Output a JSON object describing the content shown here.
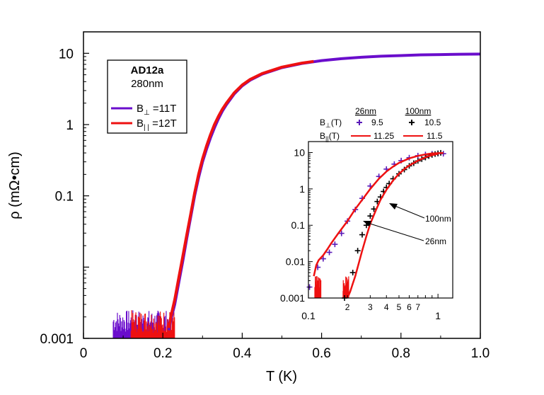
{
  "chart_data": [
    {
      "type": "line",
      "title": "",
      "xlabel": "T (K)",
      "ylabel": "ρ (mΩ•cm)",
      "x_scale": "linear",
      "y_scale": "log",
      "xlim": [
        0,
        1.0
      ],
      "ylim": [
        0.001,
        20
      ],
      "x_ticks": [
        0,
        0.2,
        0.4,
        0.6,
        0.8,
        1.0
      ],
      "x_tick_labels": [
        "0",
        "0.2",
        "0.4",
        "0.6",
        "0.8",
        "1.0"
      ],
      "y_ticks": [
        0.001,
        0.1,
        1,
        10
      ],
      "y_tick_labels": [
        "0.001",
        "0.1",
        "1",
        "10"
      ],
      "legend": {
        "placement": "top-left",
        "title": "AD12a",
        "subtitle": "280nm",
        "entries": [
          {
            "prefix": "B",
            "sub": "⊥",
            "suffix": " =11T",
            "color": "#6a0dcc"
          },
          {
            "prefix": "B",
            "sub": "| |",
            "suffix": " =12T",
            "color": "#ee1111"
          }
        ]
      },
      "series": [
        {
          "name": "B⊥ =11T",
          "color": "#6a0dcc",
          "x": [
            0.215,
            0.22,
            0.23,
            0.24,
            0.25,
            0.26,
            0.27,
            0.28,
            0.29,
            0.3,
            0.31,
            0.32,
            0.33,
            0.34,
            0.35,
            0.36,
            0.38,
            0.4,
            0.42,
            0.45,
            0.5,
            0.55,
            0.6,
            0.65,
            0.7,
            0.75,
            0.8,
            0.85,
            0.9,
            0.95,
            1.0
          ],
          "y": [
            0.0013,
            0.0018,
            0.003,
            0.006,
            0.012,
            0.025,
            0.05,
            0.1,
            0.18,
            0.3,
            0.45,
            0.65,
            0.9,
            1.2,
            1.55,
            1.9,
            2.7,
            3.5,
            4.2,
            5.1,
            6.3,
            7.2,
            7.9,
            8.4,
            8.8,
            9.1,
            9.3,
            9.5,
            9.6,
            9.7,
            9.75
          ]
        },
        {
          "name": "B|| =12T",
          "color": "#ee1111",
          "x": [
            0.215,
            0.22,
            0.23,
            0.24,
            0.25,
            0.26,
            0.27,
            0.28,
            0.29,
            0.3,
            0.31,
            0.32,
            0.33,
            0.34,
            0.35,
            0.36,
            0.38,
            0.4,
            0.42,
            0.45,
            0.5,
            0.55,
            0.58
          ],
          "y": [
            0.0014,
            0.002,
            0.0035,
            0.007,
            0.014,
            0.028,
            0.055,
            0.11,
            0.2,
            0.33,
            0.5,
            0.72,
            1.0,
            1.3,
            1.65,
            2.0,
            2.8,
            3.6,
            4.3,
            5.2,
            6.4,
            7.3,
            7.7
          ]
        }
      ],
      "noise_floor": {
        "violet_range": [
          0.075,
          0.215
        ],
        "red_range": [
          0.12,
          0.23
        ],
        "y_range": [
          0.001,
          0.0025
        ]
      }
    },
    {
      "type": "scatter",
      "title": "",
      "x_scale": "log",
      "y_scale": "log",
      "xlim": [
        0.1,
        1.3
      ],
      "ylim": [
        0.001,
        20
      ],
      "x_ticks": [
        0.1,
        0.2,
        0.3,
        0.4,
        0.5,
        0.6,
        0.7,
        1.0
      ],
      "x_tick_labels": [
        "0.1",
        "2",
        "3",
        "4",
        "5",
        "6",
        "7",
        "1"
      ],
      "y_ticks": [
        0.001,
        0.01,
        0.1,
        1,
        10
      ],
      "y_tick_labels": [
        "0.001",
        "0.01",
        "0.1",
        "1",
        "10"
      ],
      "legend_header": {
        "col1": "26nm",
        "col2": "100nm",
        "row1_label": "B⊥(T)",
        "row1_v1": "9.5",
        "row1_v2": "10.5",
        "row2_label": "B||(T)",
        "row2_v1": "11.25",
        "row2_v2": "11.5"
      },
      "annotations": [
        "100nm",
        "26nm"
      ],
      "series": [
        {
          "name": "26nm B⊥ 9.5",
          "color": "#5a1ab8",
          "marker": "plus",
          "x": [
            0.102,
            0.118,
            0.13,
            0.145,
            0.16,
            0.18,
            0.2,
            0.23,
            0.26,
            0.3,
            0.35,
            0.4,
            0.46,
            0.52,
            0.6,
            0.7,
            0.8,
            0.9,
            1.0,
            1.1
          ],
          "y": [
            0.002,
            0.007,
            0.012,
            0.018,
            0.03,
            0.06,
            0.13,
            0.27,
            0.55,
            1.2,
            2.2,
            3.5,
            4.8,
            6.0,
            7.2,
            8.2,
            8.8,
            9.2,
            9.4,
            9.3
          ]
        },
        {
          "name": "100nm B⊥ 10.5",
          "color": "#000000",
          "marker": "plus",
          "x": [
            0.19,
            0.22,
            0.24,
            0.26,
            0.28,
            0.3,
            0.32,
            0.34,
            0.36,
            0.38,
            0.4,
            0.42,
            0.45,
            0.5,
            0.55,
            0.6,
            0.65,
            0.7,
            0.75,
            0.8,
            0.85,
            0.9,
            0.95,
            1.0,
            1.05
          ],
          "y": [
            0.001,
            0.005,
            0.02,
            0.055,
            0.1,
            0.18,
            0.28,
            0.45,
            0.6,
            0.85,
            1.1,
            1.4,
            1.9,
            2.6,
            3.4,
            4.3,
            5.1,
            5.9,
            6.6,
            7.3,
            8.0,
            8.6,
            9.1,
            9.5,
            9.8
          ]
        },
        {
          "name": "26nm B|| 11.25",
          "color": "#ee1111",
          "marker": "line",
          "x": [
            0.11,
            0.115,
            0.12,
            0.13,
            0.14,
            0.15,
            0.17,
            0.2,
            0.23,
            0.26,
            0.3,
            0.35,
            0.4,
            0.45,
            0.5,
            0.6,
            0.7,
            0.8,
            0.9,
            1.0,
            1.1
          ],
          "y": [
            0.004,
            0.008,
            0.011,
            0.015,
            0.022,
            0.032,
            0.06,
            0.13,
            0.28,
            0.5,
            1.0,
            1.9,
            3.0,
            4.1,
            5.2,
            6.9,
            8.1,
            8.9,
            9.4,
            9.6,
            9.7
          ]
        },
        {
          "name": "100nm B|| 11.5",
          "color": "#ee1111",
          "marker": "line",
          "x": [
            0.2,
            0.21,
            0.22,
            0.23,
            0.24,
            0.26,
            0.28,
            0.3,
            0.33,
            0.36,
            0.4,
            0.45,
            0.5,
            0.55,
            0.6,
            0.7,
            0.8,
            0.9,
            1.0
          ],
          "y": [
            0.001,
            0.0015,
            0.0025,
            0.004,
            0.007,
            0.02,
            0.05,
            0.11,
            0.25,
            0.5,
            0.95,
            1.7,
            2.6,
            3.5,
            4.4,
            6.0,
            7.4,
            8.5,
            9.2
          ]
        }
      ]
    }
  ]
}
